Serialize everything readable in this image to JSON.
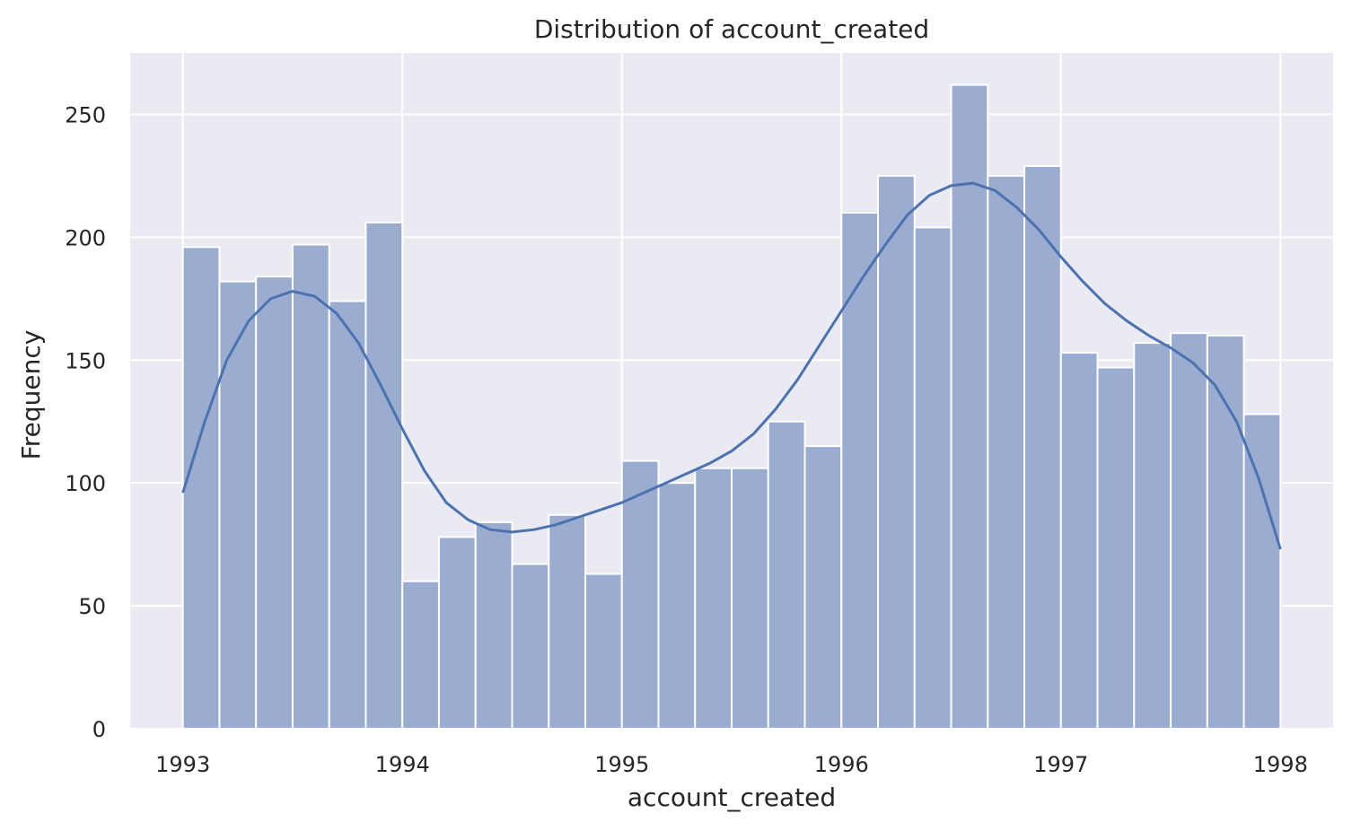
{
  "chart_data": {
    "type": "bar",
    "subtype": "histogram",
    "title": "Distribution of account_created",
    "xlabel": "account_created",
    "ylabel": "Frequency",
    "x_unit": "year",
    "xlim": [
      1992.76,
      1998.24
    ],
    "ylim": [
      0,
      275
    ],
    "x_ticks": [
      1993,
      1994,
      1995,
      1996,
      1997,
      1998
    ],
    "y_ticks": [
      0,
      50,
      100,
      150,
      200,
      250
    ],
    "grid": true,
    "bin_edges": [
      1993.0,
      1993.1667,
      1993.3333,
      1993.5,
      1993.6667,
      1993.8333,
      1994.0,
      1994.1667,
      1994.3333,
      1994.5,
      1994.6667,
      1994.8333,
      1995.0,
      1995.1667,
      1995.3333,
      1995.5,
      1995.6667,
      1995.8333,
      1996.0,
      1996.1667,
      1996.3333,
      1996.5,
      1996.6667,
      1996.8333,
      1997.0,
      1997.1667,
      1997.3333,
      1997.5,
      1997.6667,
      1997.8333,
      1998.0
    ],
    "values": [
      196,
      182,
      184,
      197,
      174,
      206,
      60,
      78,
      84,
      67,
      87,
      63,
      109,
      100,
      106,
      106,
      125,
      115,
      210,
      225,
      204,
      262,
      225,
      229,
      153,
      147,
      157,
      161,
      160,
      128
    ],
    "kde": {
      "x": [
        1993.0,
        1993.1,
        1993.2,
        1993.3,
        1993.4,
        1993.5,
        1993.6,
        1993.7,
        1993.8,
        1993.9,
        1994.0,
        1994.1,
        1994.2,
        1994.3,
        1994.4,
        1994.5,
        1994.6,
        1994.7,
        1994.8,
        1994.9,
        1995.0,
        1995.1,
        1995.2,
        1995.3,
        1995.4,
        1995.5,
        1995.6,
        1995.7,
        1995.8,
        1995.9,
        1996.0,
        1996.1,
        1996.2,
        1996.3,
        1996.4,
        1996.5,
        1996.6,
        1996.7,
        1996.8,
        1996.9,
        1997.0,
        1997.1,
        1997.2,
        1997.3,
        1997.4,
        1997.5,
        1997.6,
        1997.7,
        1997.8,
        1997.9,
        1998.0
      ],
      "y": [
        96,
        125,
        150,
        166,
        175,
        178,
        176,
        169,
        157,
        140,
        122,
        105,
        92,
        85,
        81,
        80,
        81,
        83,
        86,
        89,
        92,
        96,
        100,
        104,
        108,
        113,
        120,
        130,
        142,
        156,
        170,
        184,
        197,
        209,
        217,
        221,
        222,
        219,
        212,
        203,
        192,
        182,
        173,
        166,
        160,
        155,
        149,
        140,
        125,
        102,
        73
      ]
    },
    "colors": {
      "bar_fill": "#9aadd1",
      "bar_edge": "#ffffff",
      "kde_line": "#4c72b0",
      "plot_background": "#eaeaf2",
      "grid": "#ffffff"
    }
  }
}
